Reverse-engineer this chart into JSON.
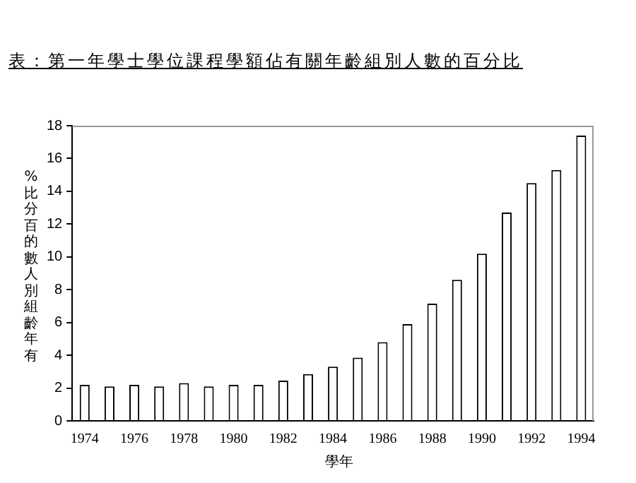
{
  "chart_data": {
    "type": "bar",
    "title": "表：第一年學士學位課程學額佔有關年齡組別人數的百分比",
    "xlabel": "學年",
    "ylabel": "%比分百的數人別組齡年有",
    "categories": [
      "1974",
      null,
      "1976",
      null,
      "1978",
      null,
      "1980",
      null,
      "1982",
      null,
      "1984",
      null,
      "1986",
      null,
      "1988",
      null,
      "1990",
      null,
      "1992",
      null,
      "1994"
    ],
    "values": [
      2.2,
      2.1,
      2.2,
      2.1,
      2.3,
      2.1,
      2.2,
      2.2,
      2.45,
      2.85,
      3.3,
      3.85,
      4.8,
      5.9,
      7.15,
      8.6,
      10.2,
      12.7,
      14.5,
      15.3,
      17.4
    ],
    "color": "#ffffff",
    "ylim": [
      0,
      18
    ],
    "yticks": [
      0,
      2,
      4,
      6,
      8,
      10,
      12,
      14,
      16,
      18
    ],
    "grid": false,
    "legend": false
  }
}
